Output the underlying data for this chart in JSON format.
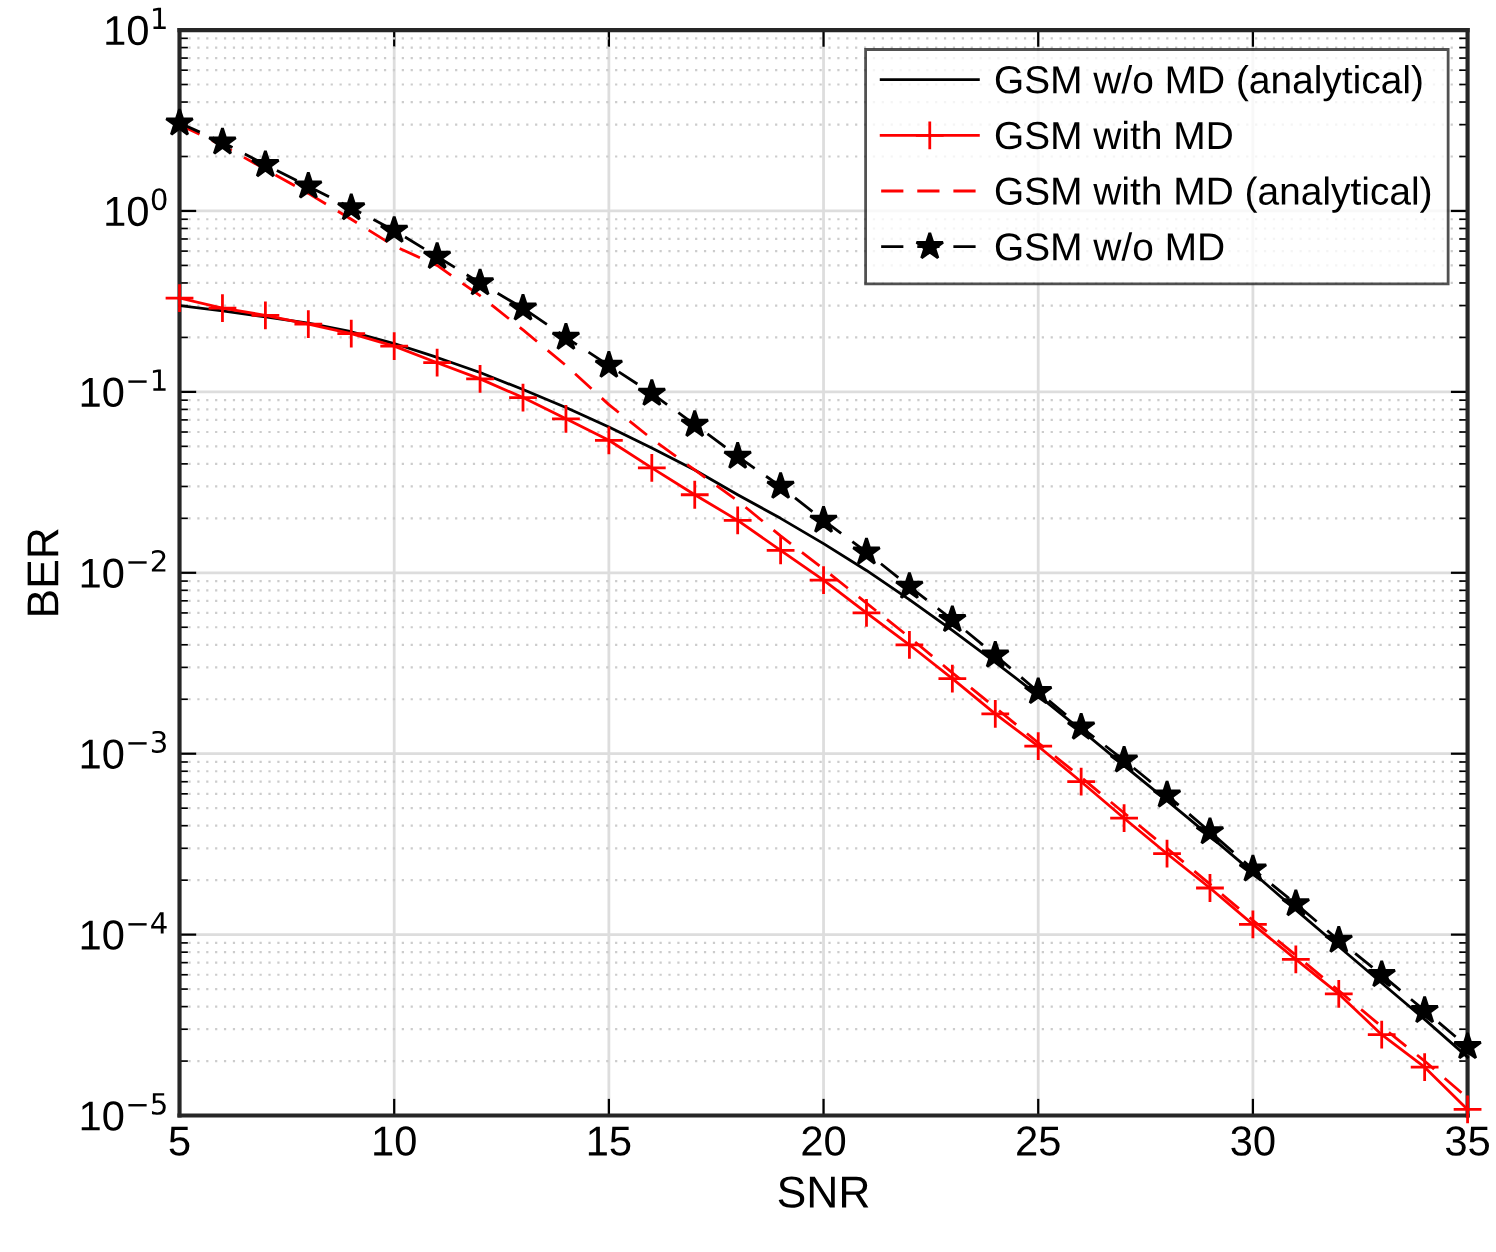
{
  "chart_data": {
    "type": "line",
    "xlabel": "SNR",
    "ylabel": "BER",
    "x": [
      5,
      6,
      7,
      8,
      9,
      10,
      11,
      12,
      13,
      14,
      15,
      16,
      17,
      18,
      19,
      20,
      21,
      22,
      23,
      24,
      25,
      26,
      27,
      28,
      29,
      30,
      31,
      32,
      33,
      34,
      35
    ],
    "series": [
      {
        "name": "GSM w/o MD (analytical)",
        "color": "#000000",
        "marker": "none",
        "line_style": "solid",
        "values": [
          0.3,
          0.28,
          0.26,
          0.24,
          0.215,
          0.185,
          0.155,
          0.128,
          0.103,
          0.082,
          0.064,
          0.049,
          0.037,
          0.027,
          0.02,
          0.0145,
          0.0103,
          0.0071,
          0.0048,
          0.0032,
          0.0021,
          0.00135,
          0.00086,
          0.00055,
          0.00035,
          0.00022,
          0.000137,
          8.6e-05,
          5.4e-05,
          3.4e-05,
          2.1e-05
        ]
      },
      {
        "name": "GSM with MD",
        "color": "#ff0000",
        "marker": "cross",
        "line_style": "solid",
        "values": [
          0.33,
          0.29,
          0.265,
          0.237,
          0.21,
          0.179,
          0.145,
          0.118,
          0.093,
          0.071,
          0.054,
          0.038,
          0.027,
          0.0195,
          0.0133,
          0.0091,
          0.006,
          0.004,
          0.0026,
          0.00166,
          0.0011,
          0.0007,
          0.00044,
          0.00028,
          0.000181,
          0.000114,
          7.3e-05,
          4.7e-05,
          2.8e-05,
          1.85e-05,
          1.08e-05
        ]
      },
      {
        "name": "GSM with MD (analytical)",
        "color": "#ff0000",
        "marker": "none",
        "line_style": "dashed",
        "values": [
          3.0,
          2.3,
          1.7,
          1.25,
          0.9,
          0.64,
          0.5,
          0.34,
          0.22,
          0.14,
          0.085,
          0.055,
          0.037,
          0.025,
          0.016,
          0.0105,
          0.0068,
          0.0044,
          0.0028,
          0.0018,
          0.00115,
          0.00074,
          0.00047,
          0.0003,
          0.00019,
          0.00012,
          7.7e-05,
          4.9e-05,
          3.1e-05,
          2e-05,
          1.25e-05
        ]
      },
      {
        "name": "GSM w/o MD",
        "color": "#000000",
        "marker": "star",
        "line_style": "dashed",
        "values": [
          3.06,
          2.4,
          1.8,
          1.37,
          1.04,
          0.78,
          0.56,
          0.4,
          0.29,
          0.2,
          0.14,
          0.098,
          0.066,
          0.044,
          0.03,
          0.0195,
          0.013,
          0.0084,
          0.0055,
          0.0035,
          0.0022,
          0.0014,
          0.00092,
          0.00059,
          0.00037,
          0.00023,
          0.000148,
          9.3e-05,
          6e-05,
          3.8e-05,
          2.4e-05
        ]
      }
    ],
    "log": "y",
    "xlim": [
      5,
      35
    ],
    "xticks": [
      5,
      10,
      15,
      20,
      25,
      30,
      35
    ],
    "ylim": [
      1e-05,
      10
    ],
    "yticks": [
      {
        "value": 1e-05,
        "label": "10$^{−5}$"
      },
      {
        "value": 0.0001,
        "label": "10$^{−4}$"
      },
      {
        "value": 0.001,
        "label": "10$^{−3}$"
      },
      {
        "value": 0.01,
        "label": "10$^{−2}$"
      },
      {
        "value": 0.1,
        "label": "10$^{−1}$"
      },
      {
        "value": 1,
        "label": "10$^{0}$"
      },
      {
        "value": 10,
        "label": "10$^{1}$"
      }
    ],
    "grid": true,
    "legend": "top right"
  }
}
